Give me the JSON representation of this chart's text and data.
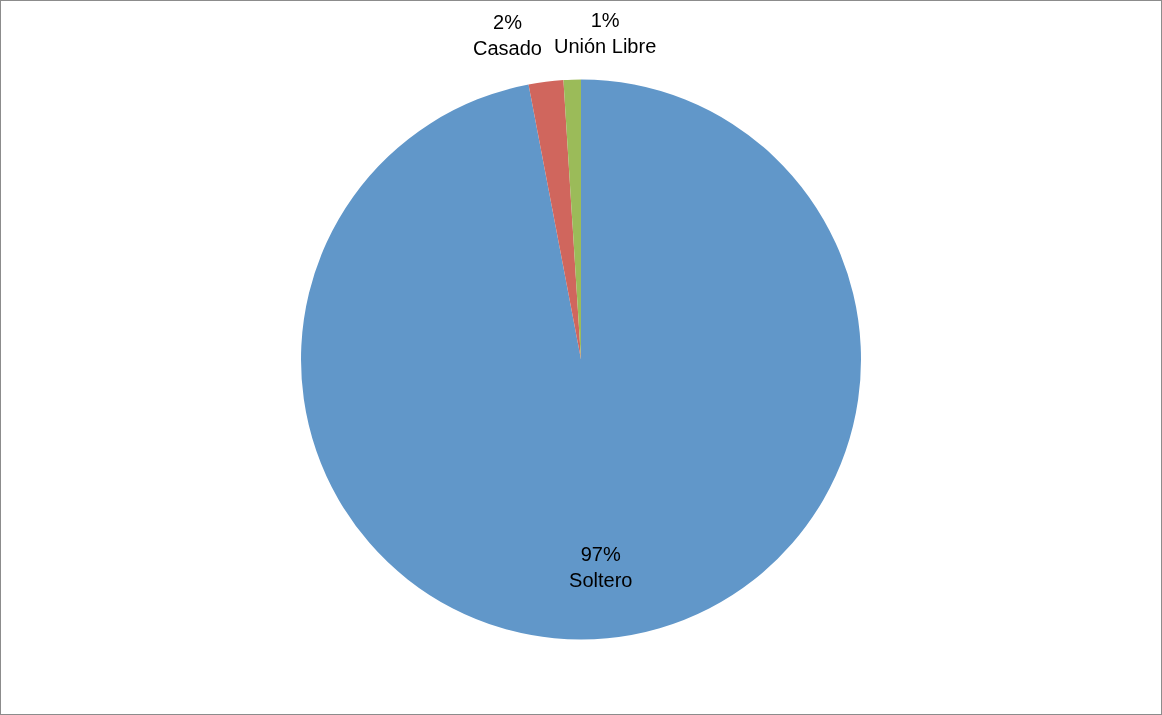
{
  "chart_data": {
    "type": "pie",
    "categories": [
      "Soltero",
      "Casado",
      "Unión Libre"
    ],
    "values": [
      97,
      2,
      1
    ],
    "colors": [
      "#6197c9",
      "#d0665d",
      "#9bbb59"
    ],
    "value_labels": [
      "97%",
      "2%",
      "1%"
    ],
    "legend": false
  }
}
